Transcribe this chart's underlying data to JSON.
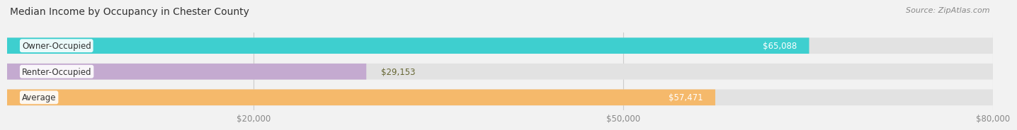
{
  "title": "Median Income by Occupancy in Chester County",
  "source": "Source: ZipAtlas.com",
  "categories": [
    "Owner-Occupied",
    "Renter-Occupied",
    "Average"
  ],
  "values": [
    65088,
    29153,
    57471
  ],
  "bar_colors": [
    "#3ecfcf",
    "#c4aad0",
    "#f5b96b"
  ],
  "bar_height": 0.62,
  "xlim": [
    0,
    80000
  ],
  "xticks": [
    20000,
    50000,
    80000
  ],
  "xtick_labels": [
    "$20,000",
    "$50,000",
    "$80,000"
  ],
  "value_labels": [
    "$65,088",
    "$29,153",
    "$57,471"
  ],
  "value_inside": [
    true,
    false,
    true
  ],
  "bg_color": "#f2f2f2",
  "bar_bg_color": "#e2e2e2",
  "title_fontsize": 10,
  "source_fontsize": 8,
  "tick_fontsize": 8.5,
  "label_fontsize": 8.5,
  "value_fontsize": 8.5
}
